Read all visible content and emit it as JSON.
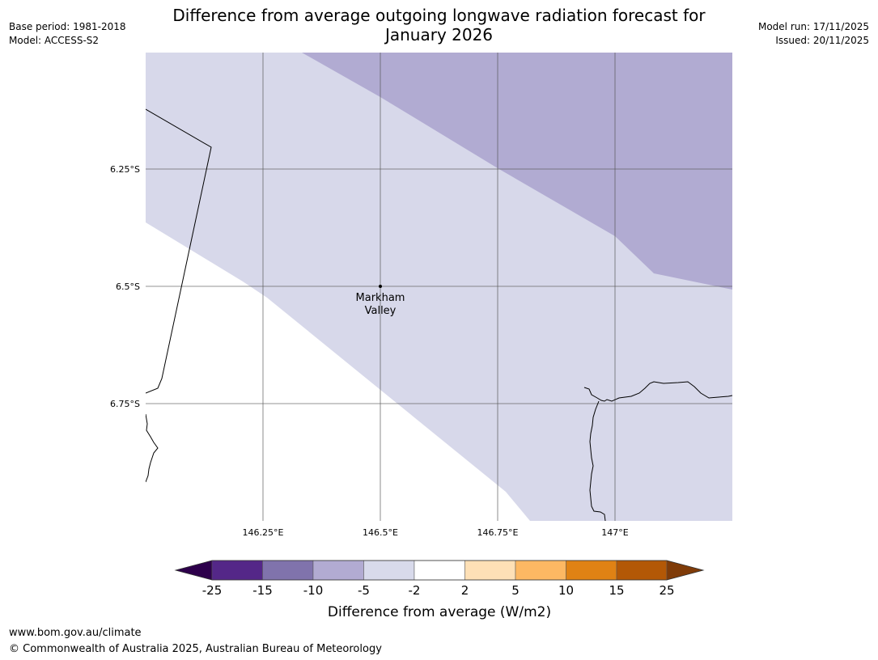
{
  "header": {
    "base_period": "Base period: 1981-2018",
    "model": "Model: ACCESS-S2",
    "title_line1": "Difference from average outgoing longwave radiation forecast for",
    "title_line2": "January 2026",
    "model_run": "Model run: 17/11/2025",
    "issued": "Issued: 20/11/2025"
  },
  "map": {
    "lon_range": [
      146.0,
      147.25
    ],
    "lat_range": [
      -6.0,
      -7.0
    ],
    "lat_labels": [
      {
        "lat": -6.25,
        "label": "6.25°S"
      },
      {
        "lat": -6.5,
        "label": "6.5°S"
      },
      {
        "lat": -6.75,
        "label": "6.75°S"
      }
    ],
    "lon_labels": [
      {
        "lon": 146.25,
        "label": "146.25°E"
      },
      {
        "lon": 146.5,
        "label": "146.5°E"
      },
      {
        "lon": 146.75,
        "label": "146.75°E"
      },
      {
        "lon": 147.0,
        "label": "147°E"
      }
    ],
    "location": {
      "name_line1": "Markham",
      "name_line2": "Valley",
      "lon": 146.5,
      "lat": -6.5
    },
    "colors": {
      "band_minus5_to_minus2": "#d7d8ea",
      "band_minus10_to_minus5": "#b1abd2"
    }
  },
  "colorbar": {
    "label": "Difference from average (W/m2)",
    "ticks": [
      "-25",
      "-15",
      "-10",
      "-5",
      "-2",
      "2",
      "5",
      "10",
      "15",
      "25"
    ],
    "colors": [
      "#2d004b",
      "#542788",
      "#8073ac",
      "#b2abd2",
      "#d8daeb",
      "#ffffff",
      "#fee0b6",
      "#fdb863",
      "#e08214",
      "#b35806",
      "#7f3b08"
    ]
  },
  "footer": {
    "url": "www.bom.gov.au/climate",
    "copyright": "© Commonwealth of Australia 2025, Australian Bureau of Meteorology"
  }
}
